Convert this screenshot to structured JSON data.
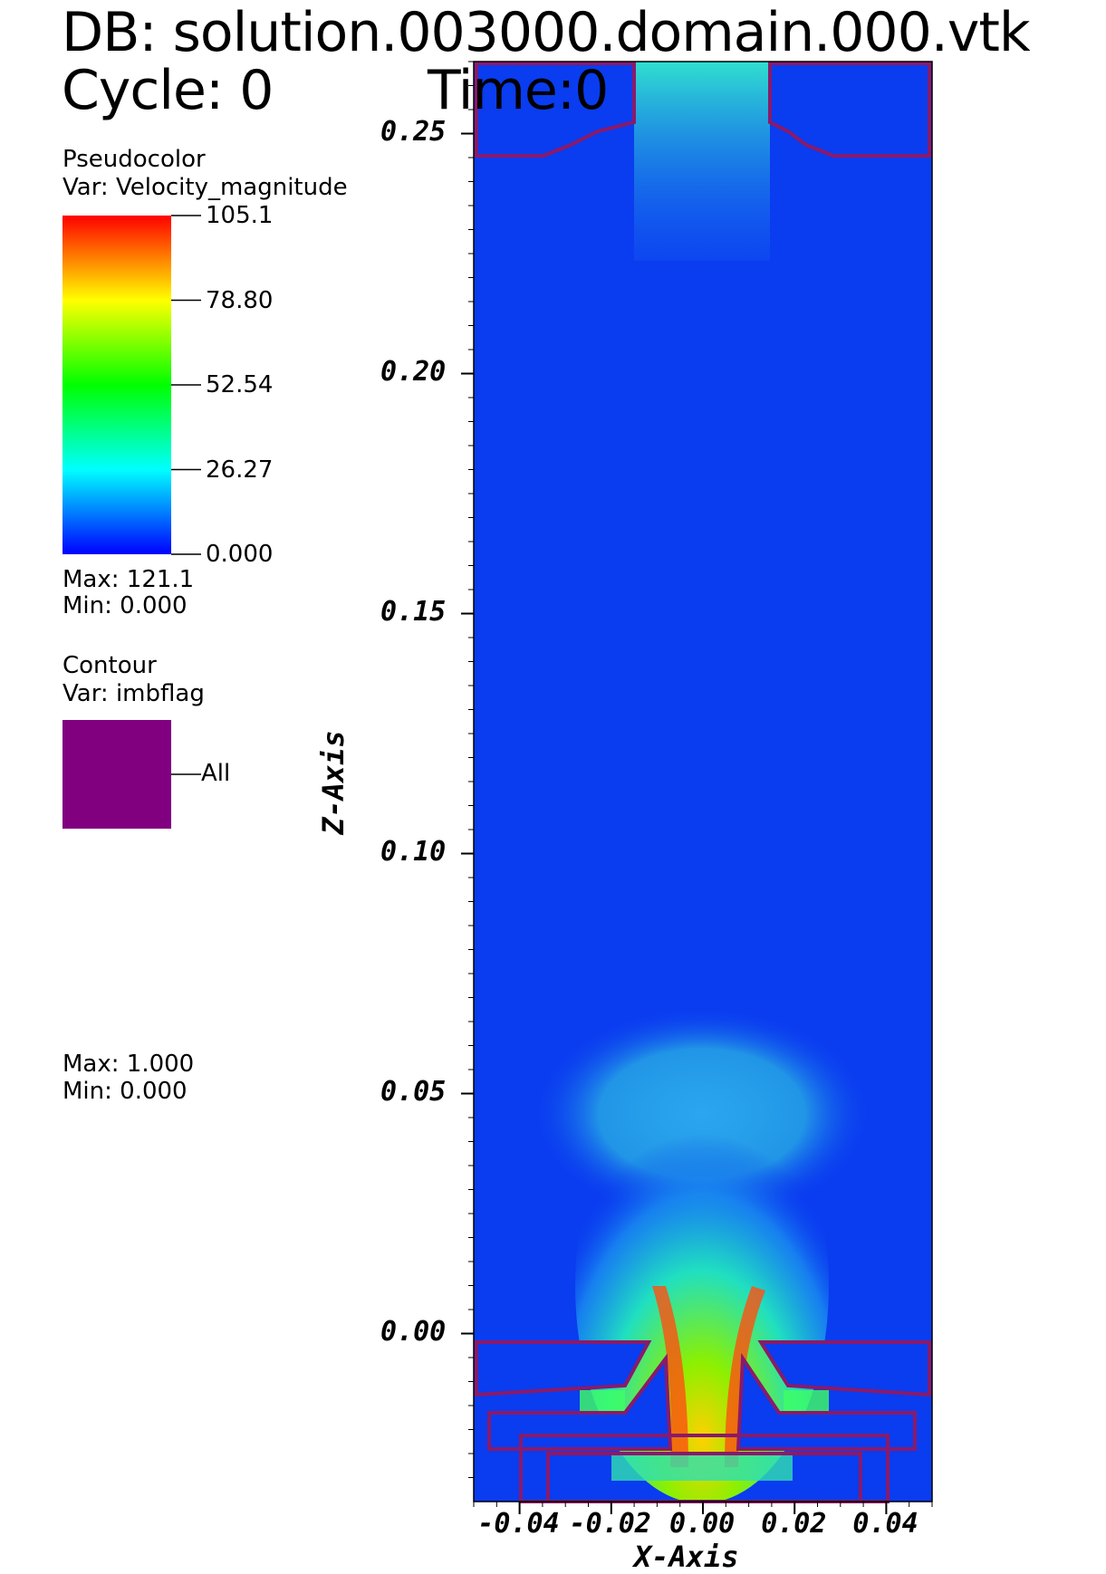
{
  "header": {
    "db_prefix": "DB:",
    "db_name": "solution.003000.domain.000.vtk",
    "cycle_label": "Cycle:",
    "cycle_value": "0",
    "time_label": "Time:",
    "time_value": "0"
  },
  "legend_pseudocolor": {
    "title": "Pseudocolor",
    "var": "Var: Velocity_magnitude",
    "ticks": [
      "105.1",
      "78.80",
      "52.54",
      "26.27",
      "0.000"
    ],
    "max": "Max:  121.1",
    "min": "Min:  0.000",
    "colormap": [
      "#ff0000",
      "#ffff00",
      "#00ff00",
      "#00ffff",
      "#0000ff"
    ]
  },
  "legend_contour": {
    "title": "Contour",
    "var": "Var: imbflag",
    "swatch_label": "All",
    "swatch_color": "#800080",
    "max": "Max:  1.000",
    "min": "Min:  0.000"
  },
  "chart_data": {
    "type": "heatmap",
    "title": "",
    "xlabel": "X-Axis",
    "ylabel": "Z-Axis",
    "xlim": [
      -0.05,
      0.05
    ],
    "ylim": [
      -0.035,
      0.265
    ],
    "x_ticks": [
      "-0.04",
      "-0.02",
      "0.00",
      "0.02",
      "0.04"
    ],
    "x_tick_values": [
      -0.04,
      -0.02,
      0.0,
      0.02,
      0.04
    ],
    "y_ticks": [
      "0.25",
      "0.20",
      "0.15",
      "0.10",
      "0.05",
      "0.00"
    ],
    "y_tick_values": [
      0.25,
      0.2,
      0.15,
      0.1,
      0.05,
      0.0
    ],
    "variable": "Velocity_magnitude",
    "color_range": [
      0.0,
      105.1
    ],
    "background_color": "#0a3cf0",
    "contour_color": "#8a1a6a"
  }
}
